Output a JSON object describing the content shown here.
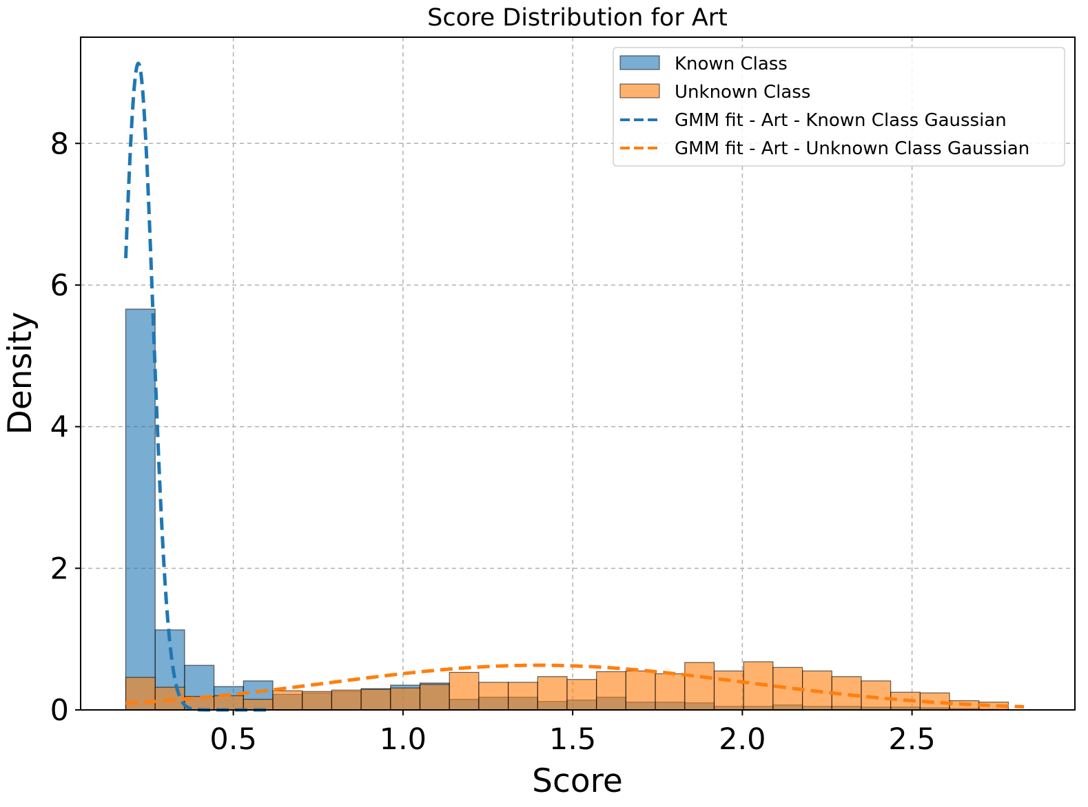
{
  "chart_data": {
    "type": "bar",
    "title": "Score Distribution for Art",
    "xlabel": "Score",
    "ylabel": "Density",
    "xlim": [
      0.05,
      2.98
    ],
    "ylim": [
      0,
      9.5
    ],
    "xticks": [
      0.5,
      1.0,
      1.5,
      2.0,
      2.5
    ],
    "xtick_labels": [
      "0.5",
      "1.0",
      "1.5",
      "2.0",
      "2.5"
    ],
    "yticks": [
      0,
      2,
      4,
      6,
      8
    ],
    "ytick_labels": [
      "0",
      "2",
      "4",
      "6",
      "8"
    ],
    "grid": true,
    "legend_position": "top-right",
    "colors": {
      "known": "#1f77b4",
      "unknown": "#ff7f0e"
    },
    "histograms": [
      {
        "name": "Known Class",
        "bin_start": 0.183,
        "bin_width": 0.0867,
        "values": [
          5.66,
          1.13,
          0.63,
          0.33,
          0.41,
          0.22,
          0.24,
          0.26,
          0.3,
          0.35,
          0.38,
          0.15,
          0.18,
          0.18,
          0.12,
          0.14,
          0.18,
          0.11,
          0.11,
          0.1,
          0.05,
          0.05,
          0.07,
          0.05,
          0.05,
          0.04,
          0.04,
          0.03,
          0.02,
          0.01
        ]
      },
      {
        "name": "Unknown Class",
        "bin_start": 0.183,
        "bin_width": 0.0867,
        "values": [
          0.46,
          0.32,
          0.19,
          0.2,
          0.15,
          0.27,
          0.26,
          0.28,
          0.29,
          0.31,
          0.36,
          0.53,
          0.39,
          0.39,
          0.47,
          0.43,
          0.54,
          0.55,
          0.51,
          0.67,
          0.55,
          0.68,
          0.6,
          0.55,
          0.47,
          0.41,
          0.25,
          0.24,
          0.13,
          0.11
        ]
      }
    ],
    "curves": [
      {
        "name": "GMM fit - Art - Known Class Gaussian",
        "mean": 0.22,
        "std": 0.0437,
        "weight": 1.0,
        "x_range": [
          0.183,
          0.6
        ]
      },
      {
        "name": "GMM fit - Art - Unknown Class Gaussian",
        "mean": 1.4,
        "std": 0.62,
        "weight": 0.98,
        "x_range": [
          0.183,
          2.83
        ]
      }
    ]
  }
}
